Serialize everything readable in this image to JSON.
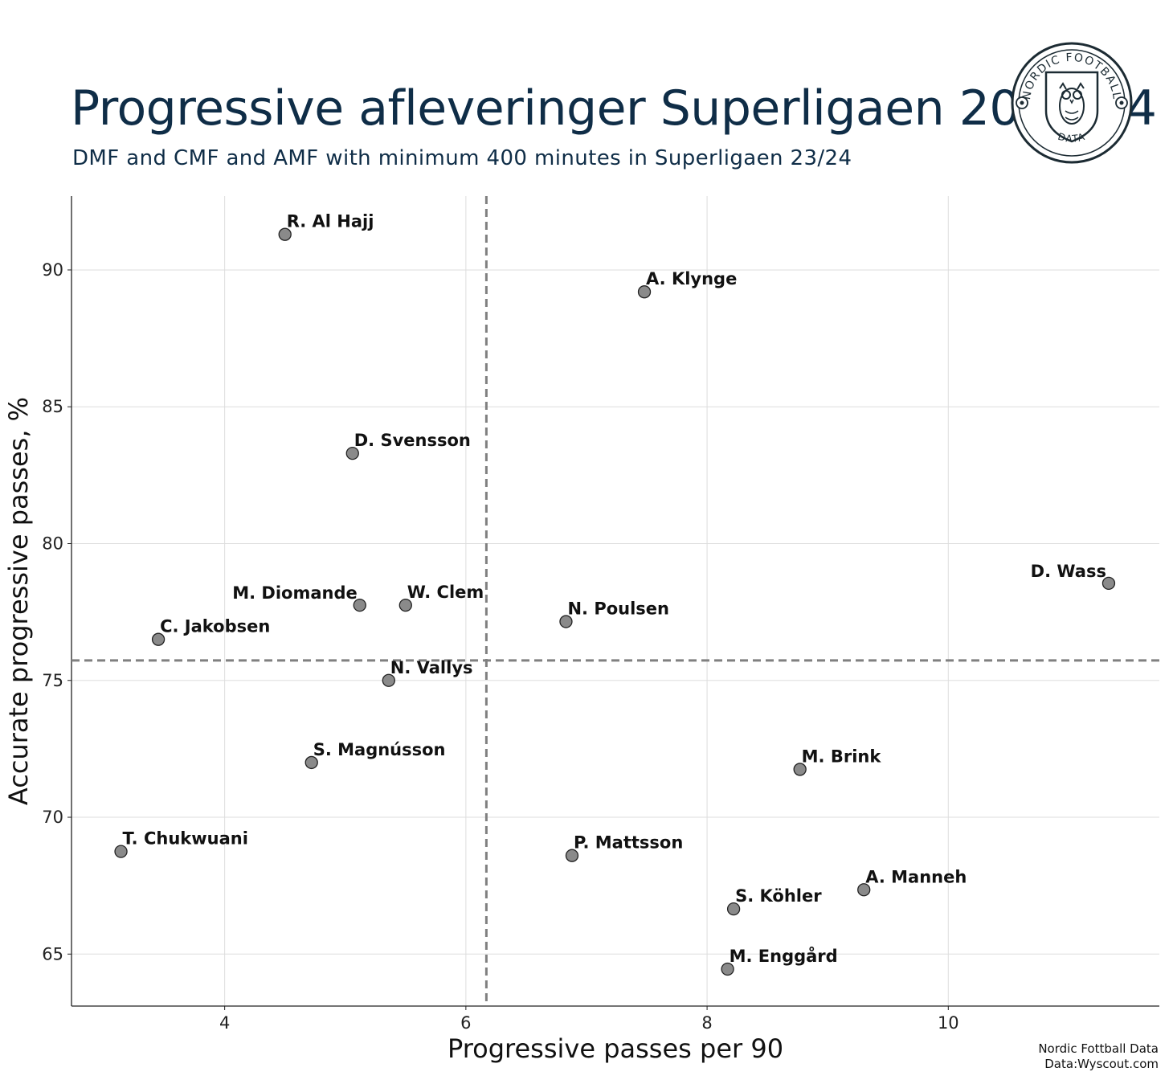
{
  "header": {
    "title": "Progressive afleveringer Superligaen 2023/24",
    "subtitle": "DMF and CMF and AMF with minimum 400 minutes in Superligaen 23/24"
  },
  "logo": {
    "text_top": "NORDIC FOOTBALL",
    "text_bottom": "DATA",
    "icon": "owl-shield-icon"
  },
  "caption": {
    "line1": "Nordic Fottball Data",
    "line2": "Data:Wyscout.com"
  },
  "colors": {
    "title": "#0f2d47",
    "point_fill": "#8a8a8a",
    "point_stroke": "#222222",
    "reference_line": "#808080",
    "grid": "#dddddd"
  },
  "chart_data": {
    "type": "scatter",
    "xlabel": "Progressive passes per 90",
    "ylabel": "Accurate progressive passes, %",
    "xlim": [
      2.73,
      11.75
    ],
    "ylim": [
      63.1,
      92.7
    ],
    "xticks": [
      4,
      6,
      8,
      10
    ],
    "yticks": [
      65,
      70,
      75,
      80,
      85,
      90
    ],
    "grid": true,
    "reference_lines": {
      "x": 6.17,
      "y": 75.73,
      "style": "dashed"
    },
    "points": [
      {
        "name": "R. Al Hajj",
        "x": 4.5,
        "y": 91.3,
        "label_side": "right"
      },
      {
        "name": "A. Klynge",
        "x": 7.48,
        "y": 89.2,
        "label_side": "right"
      },
      {
        "name": "D. Svensson",
        "x": 5.06,
        "y": 83.3,
        "label_side": "right"
      },
      {
        "name": "D. Wass",
        "x": 11.33,
        "y": 78.55,
        "label_side": "left"
      },
      {
        "name": "M. Diomande",
        "x": 5.12,
        "y": 77.75,
        "label_side": "left"
      },
      {
        "name": "W. Clem",
        "x": 5.5,
        "y": 77.75,
        "label_side": "right"
      },
      {
        "name": "N. Poulsen",
        "x": 6.83,
        "y": 77.15,
        "label_side": "right"
      },
      {
        "name": "C. Jakobsen",
        "x": 3.45,
        "y": 76.5,
        "label_side": "right"
      },
      {
        "name": "N. Vallys",
        "x": 5.36,
        "y": 75.0,
        "label_side": "right"
      },
      {
        "name": "S. Magnússon",
        "x": 4.72,
        "y": 72.0,
        "label_side": "right"
      },
      {
        "name": "M. Brink",
        "x": 8.77,
        "y": 71.75,
        "label_side": "right"
      },
      {
        "name": "T. Chukwuani",
        "x": 3.14,
        "y": 68.75,
        "label_side": "right"
      },
      {
        "name": "P. Mattsson",
        "x": 6.88,
        "y": 68.6,
        "label_side": "right"
      },
      {
        "name": "A. Manneh",
        "x": 9.3,
        "y": 67.35,
        "label_side": "right"
      },
      {
        "name": "S. Köhler",
        "x": 8.22,
        "y": 66.65,
        "label_side": "right"
      },
      {
        "name": "M. Enggård",
        "x": 8.17,
        "y": 64.45,
        "label_side": "right"
      }
    ]
  }
}
